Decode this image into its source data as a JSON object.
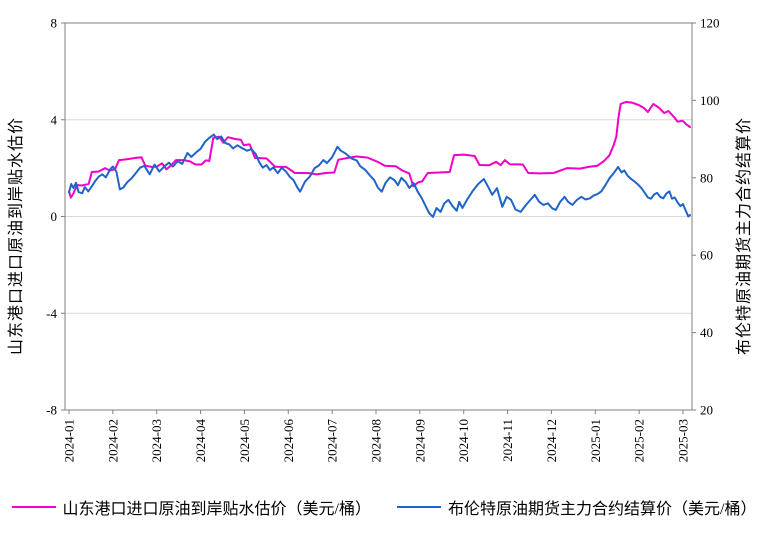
{
  "chart_data": {
    "type": "line",
    "title": "",
    "grid": {
      "horizontal": true,
      "vertical": false,
      "color": "#d9d9d9"
    },
    "axis_color": "#808080",
    "background": "#ffffff",
    "x_axis": {
      "tick_labels": [
        "2024-01",
        "2024-02",
        "2024-03",
        "2024-04",
        "2024-05",
        "2024-06",
        "2024-07",
        "2024-08",
        "2024-09",
        "2024-10",
        "2024-11",
        "2024-12",
        "2025-01",
        "2025-02",
        "2025-03"
      ],
      "label_rotation": -90
    },
    "left_axis": {
      "title": "山东港口进口原油到岸贴水估价",
      "ticks": [
        8,
        4,
        0,
        -4,
        -8
      ],
      "range": [
        -8,
        8
      ]
    },
    "right_axis": {
      "title": "布伦特原油期货主力合约结算价",
      "ticks": [
        120,
        100,
        80,
        60,
        40,
        20
      ],
      "range": [
        20,
        120
      ]
    },
    "legend": {
      "position": "bottom"
    },
    "series": [
      {
        "name": "山东港口进口原油到岸贴水估价（美元/桶）",
        "axis": "left",
        "color": "#f000c8",
        "points": [
          [
            0.0,
            1.05
          ],
          [
            0.04,
            0.78
          ],
          [
            0.1,
            0.95
          ],
          [
            0.18,
            1.3
          ],
          [
            0.3,
            1.28
          ],
          [
            0.45,
            1.35
          ],
          [
            0.52,
            1.84
          ],
          [
            0.68,
            1.86
          ],
          [
            0.82,
            2.0
          ],
          [
            0.93,
            1.9
          ],
          [
            1.05,
            1.95
          ],
          [
            1.14,
            2.33
          ],
          [
            1.3,
            2.36
          ],
          [
            1.5,
            2.42
          ],
          [
            1.65,
            2.45
          ],
          [
            1.74,
            2.1
          ],
          [
            1.88,
            2.05
          ],
          [
            2.0,
            2.06
          ],
          [
            2.12,
            2.2
          ],
          [
            2.22,
            1.95
          ],
          [
            2.32,
            2.1
          ],
          [
            2.44,
            2.33
          ],
          [
            2.62,
            2.33
          ],
          [
            2.76,
            2.28
          ],
          [
            2.88,
            2.15
          ],
          [
            3.02,
            2.15
          ],
          [
            3.12,
            2.32
          ],
          [
            3.2,
            2.3
          ],
          [
            3.29,
            3.25
          ],
          [
            3.42,
            3.3
          ],
          [
            3.52,
            3.05
          ],
          [
            3.62,
            3.28
          ],
          [
            3.8,
            3.2
          ],
          [
            3.92,
            3.17
          ],
          [
            3.98,
            2.95
          ],
          [
            4.12,
            2.98
          ],
          [
            4.24,
            2.42
          ],
          [
            4.5,
            2.4
          ],
          [
            4.7,
            2.06
          ],
          [
            4.95,
            2.05
          ],
          [
            5.15,
            1.8
          ],
          [
            5.45,
            1.8
          ],
          [
            5.65,
            1.74
          ],
          [
            5.85,
            1.8
          ],
          [
            6.05,
            1.82
          ],
          [
            6.14,
            2.35
          ],
          [
            6.35,
            2.42
          ],
          [
            6.55,
            2.48
          ],
          [
            6.8,
            2.44
          ],
          [
            7.05,
            2.25
          ],
          [
            7.2,
            2.1
          ],
          [
            7.45,
            2.08
          ],
          [
            7.6,
            1.9
          ],
          [
            7.76,
            1.78
          ],
          [
            7.85,
            1.25
          ],
          [
            7.95,
            1.4
          ],
          [
            8.05,
            1.45
          ],
          [
            8.18,
            1.8
          ],
          [
            8.45,
            1.82
          ],
          [
            8.68,
            1.84
          ],
          [
            8.78,
            2.54
          ],
          [
            9.0,
            2.56
          ],
          [
            9.25,
            2.5
          ],
          [
            9.36,
            2.13
          ],
          [
            9.58,
            2.12
          ],
          [
            9.74,
            2.26
          ],
          [
            9.84,
            2.12
          ],
          [
            9.94,
            2.33
          ],
          [
            10.05,
            2.16
          ],
          [
            10.35,
            2.15
          ],
          [
            10.47,
            1.8
          ],
          [
            10.75,
            1.78
          ],
          [
            11.05,
            1.8
          ],
          [
            11.36,
            2.0
          ],
          [
            11.65,
            1.98
          ],
          [
            11.85,
            2.05
          ],
          [
            12.05,
            2.1
          ],
          [
            12.2,
            2.3
          ],
          [
            12.32,
            2.52
          ],
          [
            12.42,
            2.95
          ],
          [
            12.48,
            3.3
          ],
          [
            12.53,
            4.1
          ],
          [
            12.58,
            4.65
          ],
          [
            12.7,
            4.74
          ],
          [
            12.85,
            4.7
          ],
          [
            13.0,
            4.6
          ],
          [
            13.1,
            4.5
          ],
          [
            13.2,
            4.32
          ],
          [
            13.32,
            4.65
          ],
          [
            13.45,
            4.5
          ],
          [
            13.57,
            4.28
          ],
          [
            13.67,
            4.36
          ],
          [
            13.8,
            4.1
          ],
          [
            13.88,
            3.92
          ],
          [
            13.99,
            3.96
          ],
          [
            14.08,
            3.8
          ],
          [
            14.16,
            3.7
          ]
        ]
      },
      {
        "name": "布伦特原油期货主力合约结算价（美元/桶）",
        "axis": "right",
        "color": "#1f64c8",
        "points": [
          [
            0.0,
            76.2
          ],
          [
            0.05,
            78.4
          ],
          [
            0.1,
            77.4
          ],
          [
            0.16,
            78.7
          ],
          [
            0.22,
            76.3
          ],
          [
            0.3,
            76.0
          ],
          [
            0.36,
            77.6
          ],
          [
            0.44,
            76.5
          ],
          [
            0.52,
            77.8
          ],
          [
            0.6,
            79.2
          ],
          [
            0.68,
            80.3
          ],
          [
            0.76,
            80.9
          ],
          [
            0.84,
            80.1
          ],
          [
            0.95,
            82.4
          ],
          [
            1.0,
            82.9
          ],
          [
            1.08,
            81.6
          ],
          [
            1.16,
            77.0
          ],
          [
            1.24,
            77.5
          ],
          [
            1.33,
            78.9
          ],
          [
            1.42,
            79.8
          ],
          [
            1.52,
            81.2
          ],
          [
            1.62,
            82.6
          ],
          [
            1.72,
            83.1
          ],
          [
            1.84,
            80.9
          ],
          [
            1.95,
            83.4
          ],
          [
            2.06,
            81.6
          ],
          [
            2.18,
            83.0
          ],
          [
            2.28,
            83.9
          ],
          [
            2.37,
            82.9
          ],
          [
            2.48,
            84.3
          ],
          [
            2.58,
            83.6
          ],
          [
            2.7,
            86.4
          ],
          [
            2.79,
            85.4
          ],
          [
            2.9,
            86.6
          ],
          [
            3.0,
            87.5
          ],
          [
            3.1,
            89.3
          ],
          [
            3.2,
            90.3
          ],
          [
            3.3,
            91.2
          ],
          [
            3.38,
            90.0
          ],
          [
            3.47,
            90.7
          ],
          [
            3.56,
            89.0
          ],
          [
            3.66,
            88.6
          ],
          [
            3.74,
            87.6
          ],
          [
            3.84,
            88.4
          ],
          [
            3.94,
            87.7
          ],
          [
            4.06,
            87.0
          ],
          [
            4.16,
            87.4
          ],
          [
            4.26,
            86.1
          ],
          [
            4.34,
            84.0
          ],
          [
            4.42,
            82.6
          ],
          [
            4.5,
            83.3
          ],
          [
            4.58,
            82.0
          ],
          [
            4.66,
            82.7
          ],
          [
            4.76,
            81.2
          ],
          [
            4.85,
            82.6
          ],
          [
            4.94,
            81.7
          ],
          [
            5.03,
            80.3
          ],
          [
            5.12,
            79.4
          ],
          [
            5.2,
            77.6
          ],
          [
            5.27,
            76.4
          ],
          [
            5.38,
            79.0
          ],
          [
            5.49,
            80.3
          ],
          [
            5.6,
            82.5
          ],
          [
            5.7,
            83.2
          ],
          [
            5.8,
            84.6
          ],
          [
            5.88,
            83.8
          ],
          [
            6.0,
            85.3
          ],
          [
            6.12,
            88.0
          ],
          [
            6.2,
            87.0
          ],
          [
            6.3,
            86.3
          ],
          [
            6.44,
            85.0
          ],
          [
            6.56,
            84.5
          ],
          [
            6.64,
            83.0
          ],
          [
            6.76,
            82.0
          ],
          [
            6.86,
            80.6
          ],
          [
            6.96,
            79.4
          ],
          [
            7.04,
            77.5
          ],
          [
            7.13,
            76.4
          ],
          [
            7.22,
            78.7
          ],
          [
            7.32,
            80.1
          ],
          [
            7.42,
            79.4
          ],
          [
            7.5,
            78.1
          ],
          [
            7.58,
            80.0
          ],
          [
            7.68,
            78.9
          ],
          [
            7.76,
            77.4
          ],
          [
            7.86,
            78.6
          ],
          [
            7.95,
            76.4
          ],
          [
            8.04,
            74.8
          ],
          [
            8.12,
            73.0
          ],
          [
            8.21,
            70.9
          ],
          [
            8.3,
            69.9
          ],
          [
            8.38,
            72.2
          ],
          [
            8.47,
            71.2
          ],
          [
            8.56,
            73.4
          ],
          [
            8.65,
            74.3
          ],
          [
            8.75,
            72.6
          ],
          [
            8.84,
            71.5
          ],
          [
            8.9,
            73.8
          ],
          [
            8.97,
            72.2
          ],
          [
            9.08,
            74.4
          ],
          [
            9.2,
            76.5
          ],
          [
            9.33,
            78.4
          ],
          [
            9.46,
            79.7
          ],
          [
            9.56,
            77.6
          ],
          [
            9.65,
            75.6
          ],
          [
            9.76,
            77.3
          ],
          [
            9.88,
            72.5
          ],
          [
            9.98,
            75.1
          ],
          [
            10.08,
            74.3
          ],
          [
            10.18,
            71.8
          ],
          [
            10.3,
            71.2
          ],
          [
            10.42,
            73.0
          ],
          [
            10.52,
            74.3
          ],
          [
            10.62,
            75.6
          ],
          [
            10.72,
            73.8
          ],
          [
            10.82,
            73.0
          ],
          [
            10.92,
            73.4
          ],
          [
            11.02,
            72.1
          ],
          [
            11.1,
            71.7
          ],
          [
            11.2,
            73.8
          ],
          [
            11.3,
            75.1
          ],
          [
            11.38,
            73.8
          ],
          [
            11.48,
            73.0
          ],
          [
            11.58,
            74.3
          ],
          [
            11.68,
            75.1
          ],
          [
            11.78,
            74.4
          ],
          [
            11.88,
            74.7
          ],
          [
            11.96,
            75.4
          ],
          [
            12.05,
            75.8
          ],
          [
            12.14,
            76.5
          ],
          [
            12.24,
            78.3
          ],
          [
            12.33,
            80.0
          ],
          [
            12.42,
            81.2
          ],
          [
            12.52,
            82.8
          ],
          [
            12.6,
            81.4
          ],
          [
            12.66,
            81.9
          ],
          [
            12.74,
            80.5
          ],
          [
            12.82,
            79.7
          ],
          [
            12.9,
            79.0
          ],
          [
            12.98,
            78.2
          ],
          [
            13.06,
            77.2
          ],
          [
            13.13,
            76.1
          ],
          [
            13.2,
            74.9
          ],
          [
            13.27,
            74.6
          ],
          [
            13.34,
            75.7
          ],
          [
            13.41,
            76.1
          ],
          [
            13.48,
            75.1
          ],
          [
            13.55,
            74.7
          ],
          [
            13.62,
            75.9
          ],
          [
            13.69,
            76.5
          ],
          [
            13.75,
            74.6
          ],
          [
            13.81,
            74.9
          ],
          [
            13.88,
            73.6
          ],
          [
            13.94,
            72.7
          ],
          [
            14.0,
            73.2
          ],
          [
            14.06,
            71.6
          ],
          [
            14.12,
            70.0
          ],
          [
            14.16,
            70.4
          ]
        ]
      }
    ]
  }
}
